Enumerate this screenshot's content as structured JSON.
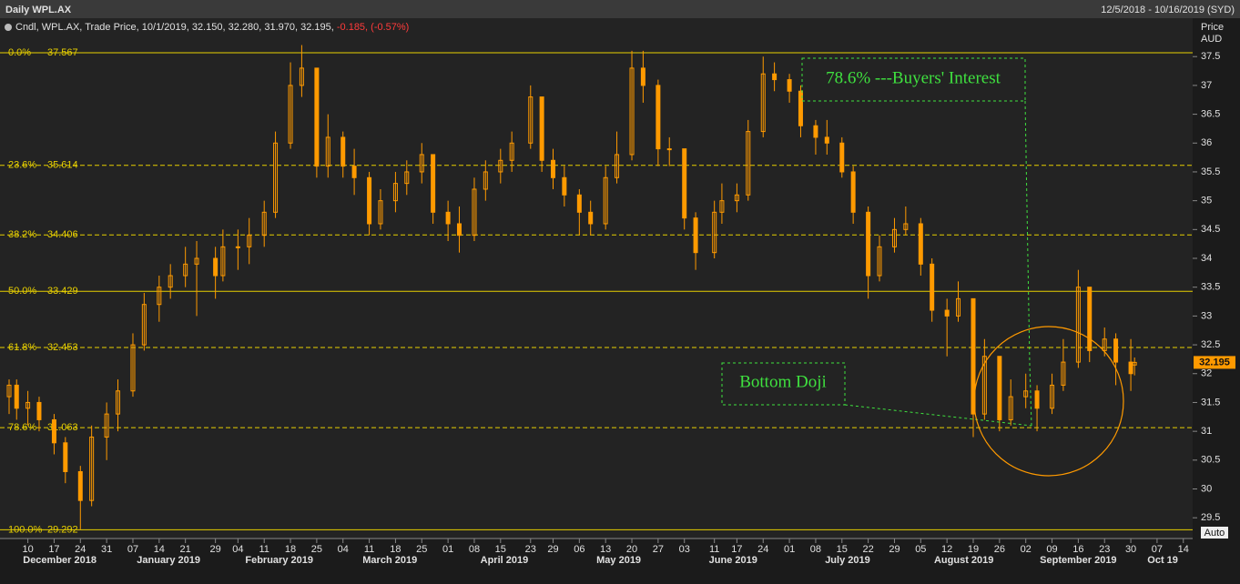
{
  "chart_data": {
    "type": "candlestick",
    "title": "Daily WPL.AX",
    "date_range": "12/5/2018 - 10/16/2019 (SYD)",
    "legend": {
      "label": "Cndl, WPL.AX, Trade Price, 10/1/2019, 32.150, 32.280, 31.970, 32.195,",
      "change": "-0.185, (-0.57%)"
    },
    "y_axis_label": "Price",
    "y_axis_unit": "AUD",
    "scale_mode": "Auto",
    "color": "#ff9a00",
    "change_color": "#ff3b3b",
    "xlim": [
      "2018-12-05",
      "2019-10-16"
    ],
    "ylim": [
      29.14,
      37.74
    ],
    "yticks": [
      29.5,
      30,
      30.5,
      31,
      31.5,
      32,
      32.5,
      33,
      33.5,
      34,
      34.5,
      35,
      35.5,
      36,
      36.5,
      37,
      37.5
    ],
    "xticks": [
      {
        "value": "2018-12-10",
        "label": "10"
      },
      {
        "value": "2018-12-17",
        "label": "17"
      },
      {
        "value": "2018-12-24",
        "label": "24"
      },
      {
        "value": "2018-12-31",
        "label": "31"
      },
      {
        "value": "2019-01-07",
        "label": "07"
      },
      {
        "value": "2019-01-14",
        "label": "14"
      },
      {
        "value": "2019-01-21",
        "label": "21"
      },
      {
        "value": "2019-01-29",
        "label": "29"
      },
      {
        "value": "2019-02-04",
        "label": "04"
      },
      {
        "value": "2019-02-11",
        "label": "11"
      },
      {
        "value": "2019-02-18",
        "label": "18"
      },
      {
        "value": "2019-02-25",
        "label": "25"
      },
      {
        "value": "2019-03-04",
        "label": "04"
      },
      {
        "value": "2019-03-11",
        "label": "11"
      },
      {
        "value": "2019-03-18",
        "label": "18"
      },
      {
        "value": "2019-03-25",
        "label": "25"
      },
      {
        "value": "2019-04-01",
        "label": "01"
      },
      {
        "value": "2019-04-08",
        "label": "08"
      },
      {
        "value": "2019-04-15",
        "label": "15"
      },
      {
        "value": "2019-04-23",
        "label": "23"
      },
      {
        "value": "2019-04-29",
        "label": "29"
      },
      {
        "value": "2019-05-06",
        "label": "06"
      },
      {
        "value": "2019-05-13",
        "label": "13"
      },
      {
        "value": "2019-05-20",
        "label": "20"
      },
      {
        "value": "2019-05-27",
        "label": "27"
      },
      {
        "value": "2019-06-03",
        "label": "03"
      },
      {
        "value": "2019-06-11",
        "label": "11"
      },
      {
        "value": "2019-06-17",
        "label": "17"
      },
      {
        "value": "2019-06-24",
        "label": "24"
      },
      {
        "value": "2019-07-01",
        "label": "01"
      },
      {
        "value": "2019-07-08",
        "label": "08"
      },
      {
        "value": "2019-07-15",
        "label": "15"
      },
      {
        "value": "2019-07-22",
        "label": "22"
      },
      {
        "value": "2019-07-29",
        "label": "29"
      },
      {
        "value": "2019-08-05",
        "label": "05"
      },
      {
        "value": "2019-08-12",
        "label": "12"
      },
      {
        "value": "2019-08-19",
        "label": "19"
      },
      {
        "value": "2019-08-26",
        "label": "26"
      },
      {
        "value": "2019-09-02",
        "label": "02"
      },
      {
        "value": "2019-09-09",
        "label": "09"
      },
      {
        "value": "2019-09-16",
        "label": "16"
      },
      {
        "value": "2019-09-23",
        "label": "23"
      },
      {
        "value": "2019-09-30",
        "label": "30"
      },
      {
        "value": "2019-10-07",
        "label": "07"
      },
      {
        "value": "2019-10-14",
        "label": "14"
      }
    ],
    "months": [
      {
        "value": "2018-12",
        "label": "December 2018"
      },
      {
        "value": "2019-01",
        "label": "January 2019"
      },
      {
        "value": "2019-02",
        "label": "February 2019"
      },
      {
        "value": "2019-03",
        "label": "March 2019"
      },
      {
        "value": "2019-04",
        "label": "April 2019"
      },
      {
        "value": "2019-05",
        "label": "May 2019"
      },
      {
        "value": "2019-06",
        "label": "June 2019"
      },
      {
        "value": "2019-07",
        "label": "July 2019"
      },
      {
        "value": "2019-08",
        "label": "August 2019"
      },
      {
        "value": "2019-09",
        "label": "September 2019"
      },
      {
        "value": "2019-10",
        "label": "Oct 19"
      }
    ],
    "fib_levels": [
      {
        "label": "0.0%",
        "value": 37.567,
        "dashed": false
      },
      {
        "label": "23.6%",
        "value": 35.614,
        "dashed": true
      },
      {
        "label": "38.2%",
        "value": 34.406,
        "dashed": true
      },
      {
        "label": "50.0%",
        "value": 33.429,
        "dashed": false
      },
      {
        "label": "61.8%",
        "value": 32.453,
        "dashed": true
      },
      {
        "label": "78.6%",
        "value": 31.063,
        "dashed": true
      },
      {
        "label": "100.0%",
        "value": 29.292,
        "dashed": false
      }
    ],
    "fib_color": "#e8d000",
    "annotations": [
      "78.6% ---Buyers' Interest",
      "Bottom Doji"
    ],
    "candles": {
      "x": [
        "2018-12-05",
        "2018-12-07",
        "2018-12-10",
        "2018-12-13",
        "2018-12-17",
        "2018-12-20",
        "2018-12-24",
        "2018-12-27",
        "2018-12-31",
        "2019-01-03",
        "2019-01-07",
        "2019-01-10",
        "2019-01-14",
        "2019-01-17",
        "2019-01-21",
        "2019-01-24",
        "2019-01-29",
        "2019-01-31",
        "2019-02-04",
        "2019-02-07",
        "2019-02-11",
        "2019-02-14",
        "2019-02-18",
        "2019-02-21",
        "2019-02-25",
        "2019-02-28",
        "2019-03-04",
        "2019-03-07",
        "2019-03-11",
        "2019-03-14",
        "2019-03-18",
        "2019-03-21",
        "2019-03-25",
        "2019-03-28",
        "2019-04-01",
        "2019-04-04",
        "2019-04-08",
        "2019-04-11",
        "2019-04-15",
        "2019-04-18",
        "2019-04-23",
        "2019-04-26",
        "2019-04-29",
        "2019-05-02",
        "2019-05-06",
        "2019-05-09",
        "2019-05-13",
        "2019-05-16",
        "2019-05-20",
        "2019-05-23",
        "2019-05-27",
        "2019-05-30",
        "2019-06-03",
        "2019-06-06",
        "2019-06-11",
        "2019-06-13",
        "2019-06-17",
        "2019-06-20",
        "2019-06-24",
        "2019-06-27",
        "2019-07-01",
        "2019-07-04",
        "2019-07-08",
        "2019-07-11",
        "2019-07-15",
        "2019-07-18",
        "2019-07-22",
        "2019-07-25",
        "2019-07-29",
        "2019-08-01",
        "2019-08-05",
        "2019-08-08",
        "2019-08-12",
        "2019-08-15",
        "2019-08-19",
        "2019-08-22",
        "2019-08-26",
        "2019-08-29",
        "2019-09-02",
        "2019-09-05",
        "2019-09-09",
        "2019-09-12",
        "2019-09-16",
        "2019-09-19",
        "2019-09-23",
        "2019-09-26",
        "2019-09-30",
        "2019-10-01"
      ],
      "open": [
        31.6,
        31.8,
        31.4,
        31.5,
        31.2,
        30.8,
        30.3,
        29.8,
        30.9,
        31.3,
        31.7,
        32.5,
        33.2,
        33.5,
        33.7,
        33.9,
        34.0,
        33.7,
        34.2,
        34.2,
        34.4,
        34.8,
        36.0,
        37.0,
        37.3,
        35.6,
        36.1,
        35.6,
        35.4,
        34.6,
        35.0,
        35.3,
        35.5,
        35.8,
        34.8,
        34.6,
        34.4,
        35.2,
        35.5,
        35.7,
        36.0,
        36.8,
        35.7,
        35.4,
        35.1,
        34.8,
        34.6,
        35.4,
        35.8,
        37.3,
        37.0,
        35.9,
        35.9,
        34.7,
        34.1,
        34.8,
        35.0,
        35.1,
        36.2,
        37.2,
        37.1,
        36.9,
        36.3,
        36.1,
        36.0,
        35.5,
        34.8,
        33.7,
        34.2,
        34.5,
        34.6,
        33.9,
        33.1,
        33.0,
        33.3,
        31.3,
        32.3,
        31.2,
        31.6,
        31.7,
        31.4,
        31.8,
        32.2,
        33.5,
        32.4,
        32.6,
        32.2,
        32.15
      ],
      "high": [
        31.9,
        31.9,
        31.7,
        31.6,
        31.3,
        30.9,
        30.4,
        31.1,
        31.5,
        31.9,
        32.7,
        33.4,
        33.7,
        33.9,
        34.2,
        34.3,
        34.2,
        34.5,
        34.5,
        34.7,
        35.0,
        36.2,
        37.4,
        37.7,
        37.3,
        36.5,
        36.2,
        35.9,
        35.5,
        35.2,
        35.5,
        35.7,
        36.0,
        35.8,
        35.0,
        34.9,
        35.4,
        35.7,
        35.9,
        36.2,
        37.0,
        36.8,
        35.9,
        35.6,
        35.2,
        35.0,
        35.6,
        36.2,
        37.6,
        37.6,
        37.1,
        36.1,
        35.9,
        34.8,
        35.0,
        35.3,
        35.3,
        36.4,
        37.5,
        37.4,
        37.2,
        37.0,
        36.4,
        36.4,
        36.1,
        35.6,
        34.9,
        34.4,
        34.7,
        34.9,
        34.7,
        34.0,
        33.3,
        33.6,
        33.3,
        32.6,
        32.3,
        31.9,
        32.0,
        31.8,
        32.0,
        32.6,
        33.8,
        33.5,
        32.8,
        32.7,
        32.6,
        32.28
      ],
      "low": [
        31.3,
        31.2,
        31.1,
        31.0,
        30.6,
        30.1,
        29.3,
        29.7,
        30.5,
        31.0,
        31.6,
        32.4,
        32.9,
        33.3,
        33.5,
        33.0,
        33.3,
        33.6,
        33.8,
        33.9,
        34.2,
        34.7,
        35.9,
        36.8,
        35.4,
        35.4,
        35.4,
        35.1,
        34.4,
        34.5,
        34.8,
        35.1,
        35.3,
        34.6,
        34.3,
        34.1,
        34.3,
        35.0,
        35.3,
        35.5,
        35.9,
        35.5,
        35.2,
        34.9,
        34.4,
        34.4,
        34.5,
        35.3,
        35.7,
        36.7,
        35.6,
        35.6,
        34.5,
        33.8,
        34.0,
        34.6,
        34.8,
        35.0,
        36.1,
        36.9,
        36.7,
        36.1,
        35.8,
        35.8,
        35.4,
        34.6,
        33.3,
        33.6,
        34.1,
        34.4,
        33.7,
        32.9,
        32.3,
        32.9,
        30.9,
        31.2,
        31.0,
        31.1,
        31.4,
        31.0,
        31.3,
        31.7,
        32.1,
        32.2,
        32.3,
        31.8,
        31.7,
        31.97
      ],
      "close": [
        31.8,
        31.4,
        31.5,
        31.2,
        30.8,
        30.3,
        29.8,
        30.9,
        31.3,
        31.7,
        32.5,
        33.2,
        33.5,
        33.7,
        33.9,
        34.0,
        33.7,
        34.2,
        34.2,
        34.4,
        34.8,
        36.0,
        37.0,
        37.3,
        35.6,
        36.1,
        35.6,
        35.4,
        34.6,
        35.0,
        35.3,
        35.5,
        35.8,
        34.8,
        34.6,
        34.4,
        35.2,
        35.5,
        35.7,
        36.0,
        36.8,
        35.7,
        35.4,
        35.1,
        34.8,
        34.6,
        35.4,
        35.8,
        37.3,
        37.0,
        35.9,
        35.9,
        34.7,
        34.1,
        34.8,
        35.0,
        35.1,
        36.2,
        37.2,
        37.1,
        36.9,
        36.3,
        36.1,
        36.0,
        35.5,
        34.8,
        33.7,
        34.2,
        34.5,
        34.6,
        33.9,
        33.1,
        33.0,
        33.3,
        31.3,
        32.3,
        31.2,
        31.6,
        31.7,
        31.4,
        31.8,
        32.2,
        33.5,
        32.4,
        32.6,
        32.2,
        32.0,
        32.195
      ]
    }
  }
}
